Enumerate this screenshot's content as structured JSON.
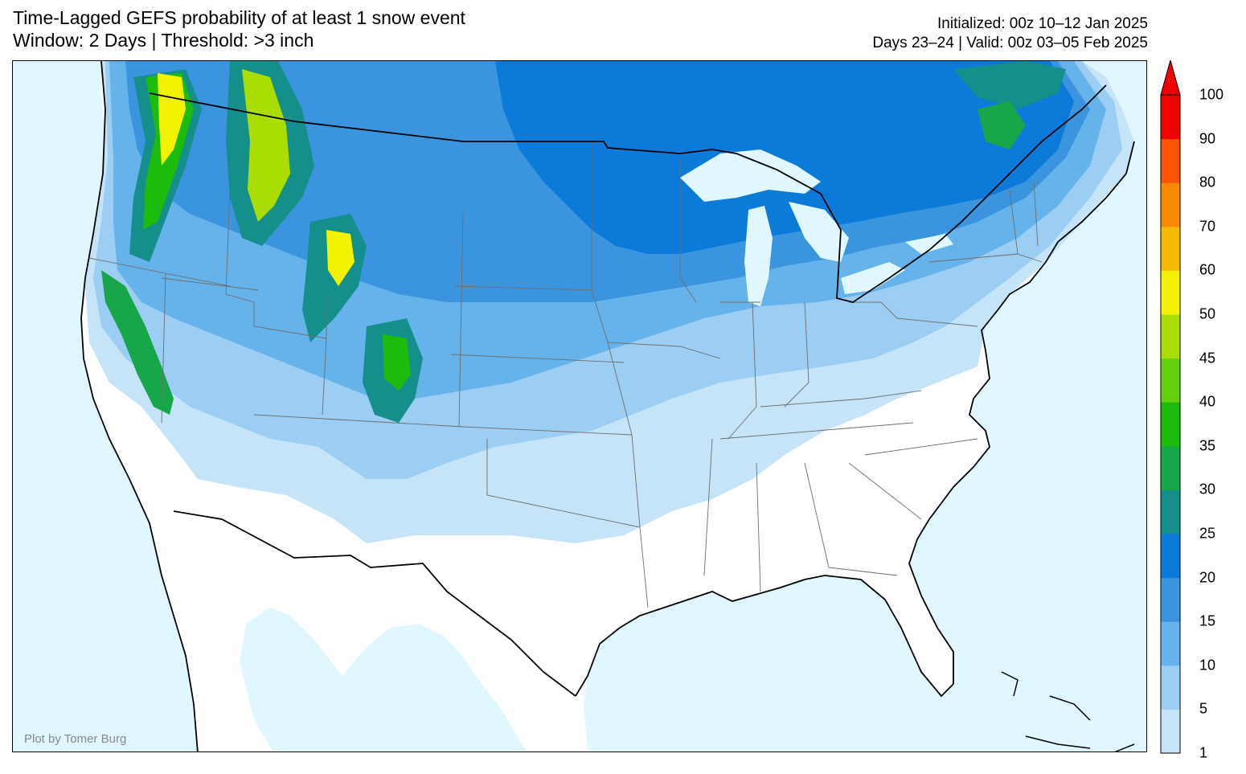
{
  "title": {
    "line1": "Time-Lagged GEFS probability of at least 1 snow event",
    "line2": "Window: 2 Days | Threshold: >3 inch"
  },
  "meta": {
    "initialized": "Initialized: 00z 10–12 Jan 2025",
    "valid": "Days 23–24 | Valid: 00z 03–05 Feb 2025"
  },
  "credit": "Plot by Tomer Burg",
  "colorbar": {
    "levels": [
      "1",
      "5",
      "10",
      "15",
      "20",
      "25",
      "30",
      "35",
      "40",
      "45",
      "50",
      "60",
      "70",
      "80",
      "90",
      "100"
    ],
    "colors": [
      "#c6e4f8",
      "#9ccdf2",
      "#66b2ea",
      "#3a95de",
      "#0b7ad8",
      "#148f8c",
      "#18a64a",
      "#1cbb0c",
      "#64d00c",
      "#aade00",
      "#f3f300",
      "#f6bd00",
      "#f98a00",
      "#fc5400",
      "#f20000"
    ],
    "extend_color": "#f20000"
  },
  "colors": {
    "ocean": "#e0f7ff",
    "land": "#ffffff",
    "lakes": "#e0f7ff",
    "border": "#000000",
    "state_lines": "#6e6e6e"
  }
}
